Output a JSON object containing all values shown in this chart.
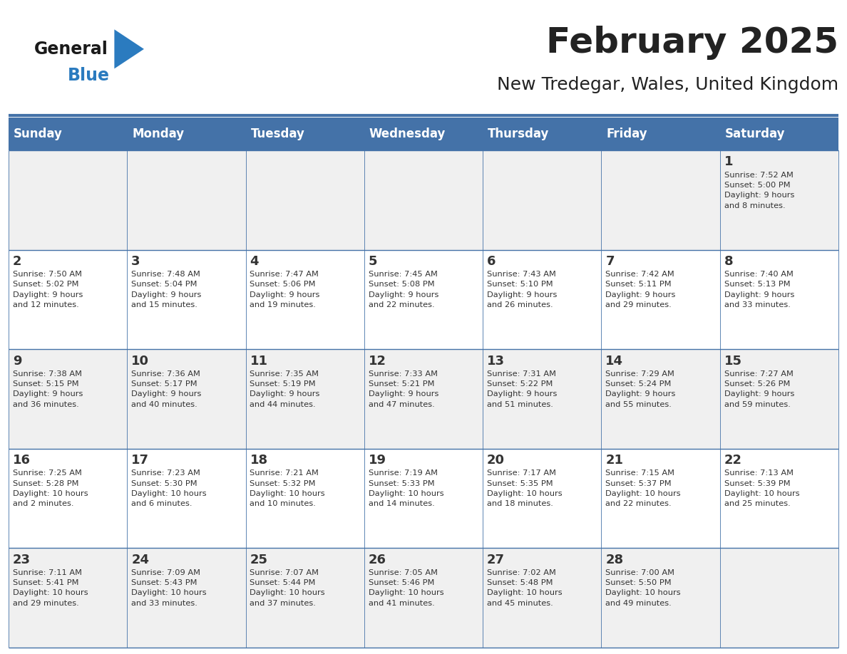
{
  "title": "February 2025",
  "subtitle": "New Tredegar, Wales, United Kingdom",
  "days_of_week": [
    "Sunday",
    "Monday",
    "Tuesday",
    "Wednesday",
    "Thursday",
    "Friday",
    "Saturday"
  ],
  "header_bg": "#4472a8",
  "header_text": "#ffffff",
  "bg_color": "#ffffff",
  "cell_alt_bg": "#f0f0f0",
  "border_color": "#4472a8",
  "day_num_color": "#333333",
  "info_color": "#333333",
  "title_color": "#222222",
  "subtitle_color": "#222222",
  "logo_general_color": "#1a1a1a",
  "logo_blue_color": "#2b7bbf",
  "figsize": [
    11.88,
    9.18
  ],
  "dpi": 100,
  "calendar_data": [
    [
      null,
      null,
      null,
      null,
      null,
      null,
      {
        "day": 1,
        "sunrise": "7:52 AM",
        "sunset": "5:00 PM",
        "daylight": "9 hours\nand 8 minutes."
      }
    ],
    [
      {
        "day": 2,
        "sunrise": "7:50 AM",
        "sunset": "5:02 PM",
        "daylight": "9 hours\nand 12 minutes."
      },
      {
        "day": 3,
        "sunrise": "7:48 AM",
        "sunset": "5:04 PM",
        "daylight": "9 hours\nand 15 minutes."
      },
      {
        "day": 4,
        "sunrise": "7:47 AM",
        "sunset": "5:06 PM",
        "daylight": "9 hours\nand 19 minutes."
      },
      {
        "day": 5,
        "sunrise": "7:45 AM",
        "sunset": "5:08 PM",
        "daylight": "9 hours\nand 22 minutes."
      },
      {
        "day": 6,
        "sunrise": "7:43 AM",
        "sunset": "5:10 PM",
        "daylight": "9 hours\nand 26 minutes."
      },
      {
        "day": 7,
        "sunrise": "7:42 AM",
        "sunset": "5:11 PM",
        "daylight": "9 hours\nand 29 minutes."
      },
      {
        "day": 8,
        "sunrise": "7:40 AM",
        "sunset": "5:13 PM",
        "daylight": "9 hours\nand 33 minutes."
      }
    ],
    [
      {
        "day": 9,
        "sunrise": "7:38 AM",
        "sunset": "5:15 PM",
        "daylight": "9 hours\nand 36 minutes."
      },
      {
        "day": 10,
        "sunrise": "7:36 AM",
        "sunset": "5:17 PM",
        "daylight": "9 hours\nand 40 minutes."
      },
      {
        "day": 11,
        "sunrise": "7:35 AM",
        "sunset": "5:19 PM",
        "daylight": "9 hours\nand 44 minutes."
      },
      {
        "day": 12,
        "sunrise": "7:33 AM",
        "sunset": "5:21 PM",
        "daylight": "9 hours\nand 47 minutes."
      },
      {
        "day": 13,
        "sunrise": "7:31 AM",
        "sunset": "5:22 PM",
        "daylight": "9 hours\nand 51 minutes."
      },
      {
        "day": 14,
        "sunrise": "7:29 AM",
        "sunset": "5:24 PM",
        "daylight": "9 hours\nand 55 minutes."
      },
      {
        "day": 15,
        "sunrise": "7:27 AM",
        "sunset": "5:26 PM",
        "daylight": "9 hours\nand 59 minutes."
      }
    ],
    [
      {
        "day": 16,
        "sunrise": "7:25 AM",
        "sunset": "5:28 PM",
        "daylight": "10 hours\nand 2 minutes."
      },
      {
        "day": 17,
        "sunrise": "7:23 AM",
        "sunset": "5:30 PM",
        "daylight": "10 hours\nand 6 minutes."
      },
      {
        "day": 18,
        "sunrise": "7:21 AM",
        "sunset": "5:32 PM",
        "daylight": "10 hours\nand 10 minutes."
      },
      {
        "day": 19,
        "sunrise": "7:19 AM",
        "sunset": "5:33 PM",
        "daylight": "10 hours\nand 14 minutes."
      },
      {
        "day": 20,
        "sunrise": "7:17 AM",
        "sunset": "5:35 PM",
        "daylight": "10 hours\nand 18 minutes."
      },
      {
        "day": 21,
        "sunrise": "7:15 AM",
        "sunset": "5:37 PM",
        "daylight": "10 hours\nand 22 minutes."
      },
      {
        "day": 22,
        "sunrise": "7:13 AM",
        "sunset": "5:39 PM",
        "daylight": "10 hours\nand 25 minutes."
      }
    ],
    [
      {
        "day": 23,
        "sunrise": "7:11 AM",
        "sunset": "5:41 PM",
        "daylight": "10 hours\nand 29 minutes."
      },
      {
        "day": 24,
        "sunrise": "7:09 AM",
        "sunset": "5:43 PM",
        "daylight": "10 hours\nand 33 minutes."
      },
      {
        "day": 25,
        "sunrise": "7:07 AM",
        "sunset": "5:44 PM",
        "daylight": "10 hours\nand 37 minutes."
      },
      {
        "day": 26,
        "sunrise": "7:05 AM",
        "sunset": "5:46 PM",
        "daylight": "10 hours\nand 41 minutes."
      },
      {
        "day": 27,
        "sunrise": "7:02 AM",
        "sunset": "5:48 PM",
        "daylight": "10 hours\nand 45 minutes."
      },
      {
        "day": 28,
        "sunrise": "7:00 AM",
        "sunset": "5:50 PM",
        "daylight": "10 hours\nand 49 minutes."
      },
      null
    ]
  ]
}
